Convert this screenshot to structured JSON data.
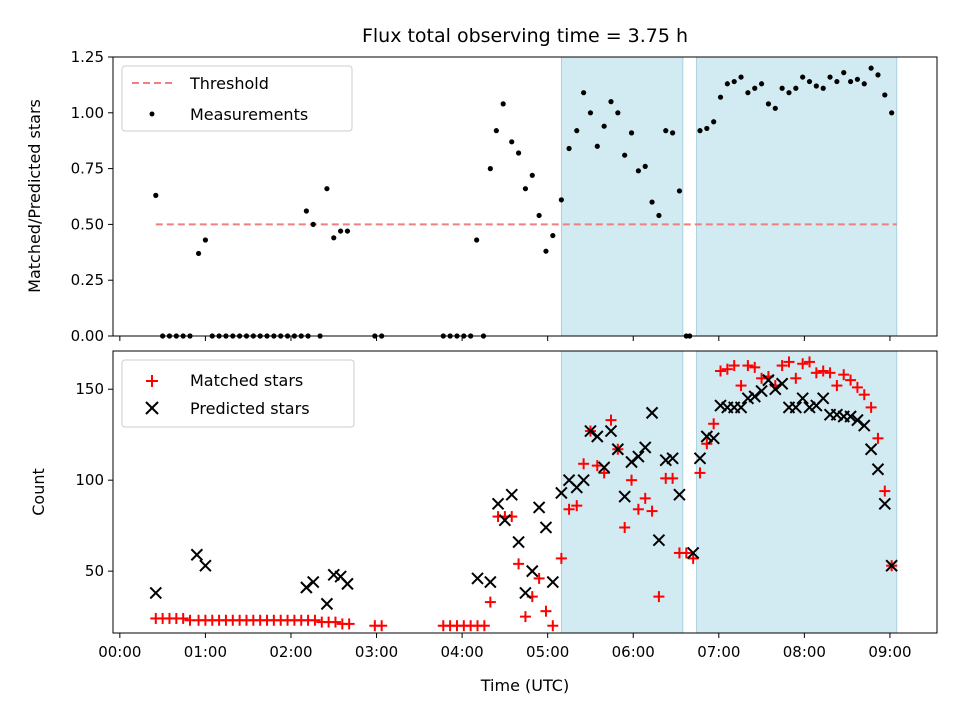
{
  "chart_data": {
    "type": "scatter",
    "title": "Flux total observing time = 3.75 h",
    "xlabel": "Time (UTC)",
    "x_ticks": [
      "00:00",
      "01:00",
      "02:00",
      "03:00",
      "04:00",
      "05:00",
      "06:00",
      "07:00",
      "08:00",
      "09:00"
    ],
    "xlim": [
      -0.08,
      9.55
    ],
    "shaded_intervals": [
      [
        5.16,
        6.58
      ],
      [
        6.74,
        9.08
      ]
    ],
    "shade_color": "#add8e6",
    "top": {
      "ylabel": "Matched/Predicted stars",
      "ylim": [
        0,
        1.25
      ],
      "y_ticks": [
        "0.00",
        "0.25",
        "0.50",
        "0.75",
        "1.00",
        "1.25"
      ],
      "threshold": {
        "name": "Threshold",
        "value": 0.5,
        "x_range": [
          0.42,
          9.08
        ],
        "color": "#f08080"
      },
      "measurements": {
        "name": "Measurements",
        "color": "#000000",
        "points": [
          [
            0.42,
            0.63
          ],
          [
            0.5,
            0.0
          ],
          [
            0.58,
            0.0
          ],
          [
            0.66,
            0.0
          ],
          [
            0.74,
            0.0
          ],
          [
            0.82,
            0.0
          ],
          [
            0.92,
            0.37
          ],
          [
            1.0,
            0.43
          ],
          [
            1.08,
            0.0
          ],
          [
            1.16,
            0.0
          ],
          [
            1.24,
            0.0
          ],
          [
            1.32,
            0.0
          ],
          [
            1.4,
            0.0
          ],
          [
            1.48,
            0.0
          ],
          [
            1.56,
            0.0
          ],
          [
            1.64,
            0.0
          ],
          [
            1.72,
            0.0
          ],
          [
            1.8,
            0.0
          ],
          [
            1.88,
            0.0
          ],
          [
            1.96,
            0.0
          ],
          [
            2.04,
            0.0
          ],
          [
            2.12,
            0.0
          ],
          [
            2.2,
            0.0
          ],
          [
            2.18,
            0.56
          ],
          [
            2.26,
            0.5
          ],
          [
            2.34,
            0.0
          ],
          [
            2.42,
            0.66
          ],
          [
            2.5,
            0.44
          ],
          [
            2.58,
            0.47
          ],
          [
            2.66,
            0.47
          ],
          [
            2.98,
            0.0
          ],
          [
            3.06,
            0.0
          ],
          [
            3.78,
            0.0
          ],
          [
            3.86,
            0.0
          ],
          [
            3.94,
            0.0
          ],
          [
            4.02,
            0.0
          ],
          [
            4.1,
            0.0
          ],
          [
            4.17,
            0.43
          ],
          [
            4.25,
            0.0
          ],
          [
            4.33,
            0.75
          ],
          [
            4.4,
            0.92
          ],
          [
            4.48,
            1.04
          ],
          [
            4.58,
            0.87
          ],
          [
            4.66,
            0.82
          ],
          [
            4.74,
            0.66
          ],
          [
            4.82,
            0.72
          ],
          [
            4.9,
            0.54
          ],
          [
            4.98,
            0.38
          ],
          [
            5.06,
            0.45
          ],
          [
            5.16,
            0.61
          ],
          [
            5.25,
            0.84
          ],
          [
            5.34,
            0.92
          ],
          [
            5.42,
            1.09
          ],
          [
            5.5,
            1.0
          ],
          [
            5.58,
            0.85
          ],
          [
            5.66,
            0.94
          ],
          [
            5.74,
            1.05
          ],
          [
            5.82,
            1.0
          ],
          [
            5.9,
            0.81
          ],
          [
            5.98,
            0.91
          ],
          [
            6.06,
            0.74
          ],
          [
            6.14,
            0.76
          ],
          [
            6.22,
            0.6
          ],
          [
            6.3,
            0.54
          ],
          [
            6.38,
            0.92
          ],
          [
            6.46,
            0.91
          ],
          [
            6.54,
            0.65
          ],
          [
            6.62,
            0.0
          ],
          [
            6.66,
            0.0
          ],
          [
            6.78,
            0.92
          ],
          [
            6.86,
            0.93
          ],
          [
            6.94,
            0.96
          ],
          [
            7.02,
            1.07
          ],
          [
            7.1,
            1.13
          ],
          [
            7.18,
            1.14
          ],
          [
            7.26,
            1.16
          ],
          [
            7.34,
            1.09
          ],
          [
            7.42,
            1.11
          ],
          [
            7.5,
            1.13
          ],
          [
            7.58,
            1.04
          ],
          [
            7.66,
            1.02
          ],
          [
            7.74,
            1.11
          ],
          [
            7.82,
            1.09
          ],
          [
            7.9,
            1.11
          ],
          [
            7.98,
            1.16
          ],
          [
            8.06,
            1.14
          ],
          [
            8.14,
            1.12
          ],
          [
            8.22,
            1.11
          ],
          [
            8.3,
            1.16
          ],
          [
            8.38,
            1.14
          ],
          [
            8.46,
            1.18
          ],
          [
            8.54,
            1.14
          ],
          [
            8.62,
            1.15
          ],
          [
            8.7,
            1.13
          ],
          [
            8.78,
            1.2
          ],
          [
            8.86,
            1.17
          ],
          [
            8.94,
            1.08
          ],
          [
            9.02,
            1.0
          ]
        ]
      }
    },
    "bottom": {
      "ylabel": "Count",
      "ylim": [
        16,
        171
      ],
      "y_ticks": [
        "50",
        "100",
        "150"
      ],
      "matched": {
        "name": "Matched stars",
        "color": "#ff0000",
        "points": [
          [
            0.42,
            24
          ],
          [
            0.5,
            24
          ],
          [
            0.58,
            24
          ],
          [
            0.66,
            24
          ],
          [
            0.74,
            24
          ],
          [
            0.82,
            23
          ],
          [
            0.92,
            23
          ],
          [
            1.0,
            23
          ],
          [
            1.08,
            23
          ],
          [
            1.16,
            23
          ],
          [
            1.24,
            23
          ],
          [
            1.32,
            23
          ],
          [
            1.4,
            23
          ],
          [
            1.48,
            23
          ],
          [
            1.56,
            23
          ],
          [
            1.64,
            23
          ],
          [
            1.72,
            23
          ],
          [
            1.8,
            23
          ],
          [
            1.88,
            23
          ],
          [
            1.96,
            23
          ],
          [
            2.04,
            23
          ],
          [
            2.12,
            23
          ],
          [
            2.2,
            23
          ],
          [
            2.28,
            23
          ],
          [
            2.36,
            22
          ],
          [
            2.44,
            22
          ],
          [
            2.52,
            22
          ],
          [
            2.6,
            21
          ],
          [
            2.68,
            21
          ],
          [
            2.98,
            20
          ],
          [
            3.06,
            20
          ],
          [
            3.78,
            20
          ],
          [
            3.86,
            20
          ],
          [
            3.94,
            20
          ],
          [
            4.02,
            20
          ],
          [
            4.1,
            20
          ],
          [
            4.18,
            20
          ],
          [
            4.26,
            20
          ],
          [
            4.33,
            33
          ],
          [
            4.42,
            80
          ],
          [
            4.5,
            80
          ],
          [
            4.58,
            80
          ],
          [
            4.66,
            54
          ],
          [
            4.74,
            25
          ],
          [
            4.82,
            36
          ],
          [
            4.9,
            46
          ],
          [
            4.98,
            28
          ],
          [
            5.06,
            20
          ],
          [
            5.16,
            57
          ],
          [
            5.25,
            84
          ],
          [
            5.34,
            86
          ],
          [
            5.42,
            109
          ],
          [
            5.5,
            127
          ],
          [
            5.58,
            108
          ],
          [
            5.66,
            104
          ],
          [
            5.74,
            133
          ],
          [
            5.82,
            117
          ],
          [
            5.9,
            74
          ],
          [
            5.98,
            100
          ],
          [
            6.06,
            84
          ],
          [
            6.14,
            90
          ],
          [
            6.22,
            83
          ],
          [
            6.3,
            36
          ],
          [
            6.38,
            101
          ],
          [
            6.46,
            101
          ],
          [
            6.54,
            60
          ],
          [
            6.62,
            60
          ],
          [
            6.7,
            57
          ],
          [
            6.78,
            104
          ],
          [
            6.86,
            120
          ],
          [
            6.94,
            131
          ],
          [
            7.02,
            160
          ],
          [
            7.1,
            161
          ],
          [
            7.18,
            163
          ],
          [
            7.26,
            152
          ],
          [
            7.34,
            163
          ],
          [
            7.42,
            162
          ],
          [
            7.5,
            156
          ],
          [
            7.58,
            157
          ],
          [
            7.66,
            152
          ],
          [
            7.74,
            163
          ],
          [
            7.82,
            165
          ],
          [
            7.9,
            156
          ],
          [
            7.98,
            164
          ],
          [
            8.06,
            165
          ],
          [
            8.14,
            159
          ],
          [
            8.22,
            160
          ],
          [
            8.3,
            159
          ],
          [
            8.38,
            152
          ],
          [
            8.46,
            158
          ],
          [
            8.54,
            155
          ],
          [
            8.62,
            151
          ],
          [
            8.7,
            147
          ],
          [
            8.78,
            140
          ],
          [
            8.86,
            123
          ],
          [
            8.94,
            94
          ],
          [
            9.02,
            53
          ]
        ]
      },
      "predicted": {
        "name": "Predicted stars",
        "color": "#000000",
        "points": [
          [
            0.42,
            38
          ],
          [
            0.9,
            59
          ],
          [
            1.0,
            53
          ],
          [
            2.18,
            41
          ],
          [
            2.26,
            44
          ],
          [
            2.42,
            32
          ],
          [
            2.5,
            48
          ],
          [
            2.58,
            47
          ],
          [
            2.66,
            43
          ],
          [
            4.18,
            46
          ],
          [
            4.33,
            44
          ],
          [
            4.42,
            87
          ],
          [
            4.5,
            78
          ],
          [
            4.58,
            92
          ],
          [
            4.66,
            66
          ],
          [
            4.74,
            38
          ],
          [
            4.82,
            50
          ],
          [
            4.9,
            85
          ],
          [
            4.98,
            74
          ],
          [
            5.06,
            44
          ],
          [
            5.16,
            93
          ],
          [
            5.25,
            100
          ],
          [
            5.34,
            96
          ],
          [
            5.42,
            100
          ],
          [
            5.5,
            127
          ],
          [
            5.58,
            124
          ],
          [
            5.66,
            107
          ],
          [
            5.74,
            127
          ],
          [
            5.82,
            117
          ],
          [
            5.9,
            91
          ],
          [
            5.98,
            110
          ],
          [
            6.06,
            113
          ],
          [
            6.14,
            118
          ],
          [
            6.22,
            137
          ],
          [
            6.3,
            67
          ],
          [
            6.38,
            111
          ],
          [
            6.46,
            112
          ],
          [
            6.54,
            92
          ],
          [
            6.7,
            60
          ],
          [
            6.78,
            112
          ],
          [
            6.86,
            124
          ],
          [
            6.94,
            123
          ],
          [
            7.02,
            141
          ],
          [
            7.1,
            140
          ],
          [
            7.18,
            140
          ],
          [
            7.26,
            140
          ],
          [
            7.34,
            145
          ],
          [
            7.42,
            146
          ],
          [
            7.5,
            149
          ],
          [
            7.58,
            155
          ],
          [
            7.66,
            150
          ],
          [
            7.74,
            153
          ],
          [
            7.82,
            140
          ],
          [
            7.9,
            140
          ],
          [
            7.98,
            145
          ],
          [
            8.06,
            140
          ],
          [
            8.14,
            141
          ],
          [
            8.22,
            145
          ],
          [
            8.3,
            136
          ],
          [
            8.38,
            136
          ],
          [
            8.46,
            135
          ],
          [
            8.54,
            135
          ],
          [
            8.62,
            133
          ],
          [
            8.7,
            130
          ],
          [
            8.78,
            117
          ],
          [
            8.86,
            106
          ],
          [
            8.94,
            87
          ],
          [
            9.02,
            53
          ]
        ]
      }
    },
    "legend_position": "upper-left"
  }
}
